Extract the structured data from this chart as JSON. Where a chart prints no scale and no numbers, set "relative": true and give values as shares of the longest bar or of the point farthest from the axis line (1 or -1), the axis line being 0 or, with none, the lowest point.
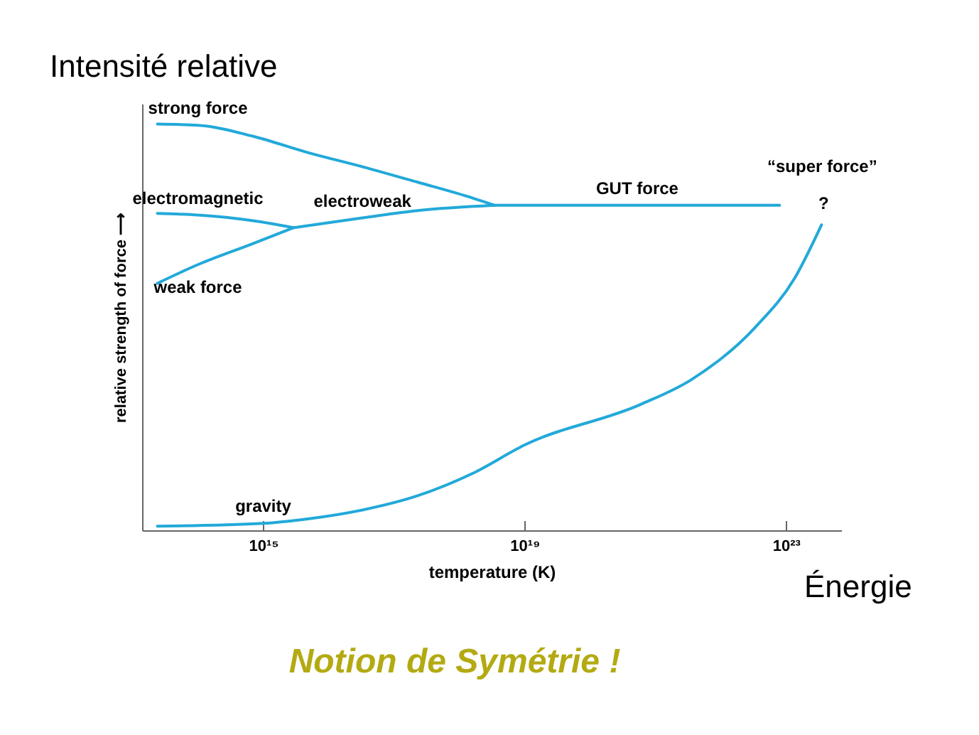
{
  "chart_data": {
    "type": "line",
    "relative": true,
    "log": "x",
    "xlabel": "temperature (K)",
    "ylabel": "relative strength of force ⟶",
    "xlim": [
      14000000000000.0,
      7e+23
    ],
    "xticks": [
      {
        "value": 1000000000000000.0,
        "label": "10¹⁵"
      },
      {
        "value": 1e+19,
        "label": "10¹⁹"
      },
      {
        "value": 1e+23,
        "label": "10²³"
      }
    ],
    "grid": false,
    "marker": "none",
    "line_style": "solid",
    "series": [
      {
        "name": "strong force",
        "color": "#22a9d9",
        "x": [
          24000000000000.0,
          100000000000000.0,
          700000000000000.0,
          4800000000000000.0,
          3.3e+16,
          2.3e+17,
          1.6e+18,
          3.5e+18
        ],
        "values": [
          1.0,
          0.997,
          0.97,
          0.93,
          0.895,
          0.857,
          0.818,
          0.8
        ]
      },
      {
        "name": "electromagnetic",
        "color": "#22a9d9",
        "x": [
          24000000000000.0,
          100000000000000.0,
          700000000000000.0,
          2900000000000000.0
        ],
        "values": [
          0.78,
          0.776,
          0.762,
          0.745
        ]
      },
      {
        "name": "weak force",
        "color": "#22a9d9",
        "x": [
          24000000000000.0,
          100000000000000.0,
          700000000000000.0,
          2900000000000000.0
        ],
        "values": [
          0.608,
          0.654,
          0.706,
          0.745
        ]
      },
      {
        "name": "electroweak",
        "color": "#22a9d9",
        "x": [
          2900000000000000.0,
          3.3e+16,
          2.3e+17,
          3.5e+18
        ],
        "values": [
          0.745,
          0.769,
          0.787,
          0.8
        ]
      },
      {
        "name": "GUT force",
        "color": "#22a9d9",
        "x": [
          3.5e+18,
          8e+22
        ],
        "values": [
          0.8,
          0.8
        ]
      },
      {
        "name": "gravity",
        "color": "#22a9d9",
        "x": [
          24000000000000.0,
          1000000000000000.0,
          4800000000000000.0,
          3.3e+16,
          2.3e+17,
          1.6e+18,
          1e+19,
          6e+20,
          3.5e+21,
          3.4e+22,
          1.35e+23,
          3.5e+23
        ],
        "values": [
          0.01,
          0.017,
          0.028,
          0.05,
          0.085,
          0.14,
          0.21,
          0.31,
          0.37,
          0.5,
          0.62,
          0.752
        ]
      }
    ],
    "annotations": [
      "Intensité relative",
      "Énergie",
      "Notion de Symétrie !",
      "“super force”",
      "?"
    ]
  }
}
